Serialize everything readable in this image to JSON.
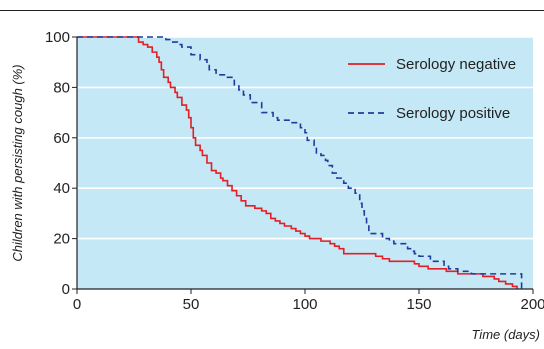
{
  "chart_data": {
    "type": "line",
    "title": "",
    "xlabel": "Time (days)",
    "ylabel": "Children with persisting cough (%)",
    "xlim": [
      0,
      200
    ],
    "ylim": [
      0,
      100
    ],
    "x_ticks": [
      0,
      50,
      100,
      150,
      200
    ],
    "y_ticks": [
      0,
      20,
      40,
      60,
      80,
      100
    ],
    "grid": "horizontal",
    "legend_position": "top-right",
    "background_color": "#c5e8f6",
    "series": [
      {
        "name": "Serology negative",
        "color": "#e31e24",
        "style": "solid",
        "step": true,
        "points": [
          [
            0,
            100
          ],
          [
            25,
            100
          ],
          [
            27,
            98
          ],
          [
            29,
            97
          ],
          [
            31,
            96
          ],
          [
            33,
            94
          ],
          [
            35,
            92
          ],
          [
            36,
            90
          ],
          [
            37,
            87
          ],
          [
            38,
            84
          ],
          [
            40,
            82
          ],
          [
            41,
            80
          ],
          [
            43,
            78
          ],
          [
            44,
            76
          ],
          [
            46,
            73
          ],
          [
            48,
            71
          ],
          [
            49,
            68
          ],
          [
            50,
            64
          ],
          [
            51,
            60
          ],
          [
            52,
            57
          ],
          [
            54,
            55
          ],
          [
            55,
            53
          ],
          [
            57,
            50
          ],
          [
            59,
            47
          ],
          [
            61,
            46
          ],
          [
            63,
            44
          ],
          [
            64,
            43
          ],
          [
            66,
            41
          ],
          [
            68,
            39
          ],
          [
            70,
            37
          ],
          [
            72,
            35
          ],
          [
            74,
            33
          ],
          [
            78,
            32
          ],
          [
            81,
            31
          ],
          [
            83,
            30
          ],
          [
            85,
            28
          ],
          [
            87,
            27
          ],
          [
            89,
            26
          ],
          [
            91,
            25
          ],
          [
            94,
            24
          ],
          [
            96,
            23
          ],
          [
            98,
            22
          ],
          [
            100,
            21
          ],
          [
            102,
            20
          ],
          [
            107,
            19
          ],
          [
            111,
            18
          ],
          [
            113,
            17
          ],
          [
            115,
            16
          ],
          [
            117,
            14
          ],
          [
            131,
            13
          ],
          [
            134,
            12
          ],
          [
            137,
            11
          ],
          [
            148,
            10
          ],
          [
            150,
            9
          ],
          [
            154,
            8
          ],
          [
            162,
            7
          ],
          [
            167,
            6
          ],
          [
            178,
            5
          ],
          [
            183,
            4
          ],
          [
            185,
            3
          ],
          [
            188,
            2
          ],
          [
            191,
            1
          ],
          [
            193,
            0
          ]
        ]
      },
      {
        "name": "Serology positive",
        "color": "#1f3c9a",
        "style": "dashed",
        "step": true,
        "points": [
          [
            0,
            100
          ],
          [
            25,
            100
          ],
          [
            39,
            99
          ],
          [
            41,
            98
          ],
          [
            44,
            97
          ],
          [
            46,
            96
          ],
          [
            50,
            93
          ],
          [
            54,
            91
          ],
          [
            57,
            89
          ],
          [
            58,
            87
          ],
          [
            61,
            85
          ],
          [
            66,
            84
          ],
          [
            69,
            81
          ],
          [
            71,
            79
          ],
          [
            73,
            77
          ],
          [
            76,
            74
          ],
          [
            81,
            70
          ],
          [
            86,
            68
          ],
          [
            88,
            67
          ],
          [
            93,
            66
          ],
          [
            98,
            64
          ],
          [
            100,
            62
          ],
          [
            101,
            59
          ],
          [
            104,
            57
          ],
          [
            105,
            54
          ],
          [
            107,
            53
          ],
          [
            109,
            51
          ],
          [
            110,
            49
          ],
          [
            112,
            46
          ],
          [
            114,
            44
          ],
          [
            117,
            42
          ],
          [
            119,
            40
          ],
          [
            122,
            38
          ],
          [
            124,
            34
          ],
          [
            125,
            31
          ],
          [
            126,
            28
          ],
          [
            127,
            25
          ],
          [
            128,
            22
          ],
          [
            134,
            20
          ],
          [
            137,
            19
          ],
          [
            139,
            18
          ],
          [
            145,
            16
          ],
          [
            147,
            15
          ],
          [
            148,
            14
          ],
          [
            150,
            13
          ],
          [
            155,
            11
          ],
          [
            161,
            9
          ],
          [
            163,
            8
          ],
          [
            167,
            7
          ],
          [
            173,
            6
          ],
          [
            195,
            6
          ],
          [
            195,
            0
          ]
        ]
      }
    ]
  }
}
